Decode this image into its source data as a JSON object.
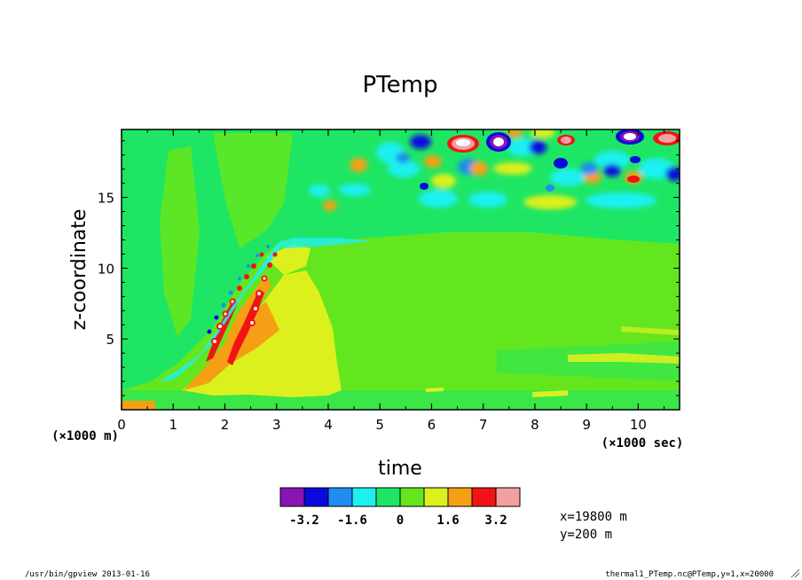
{
  "chart_data": {
    "type": "heatmap",
    "title": "PTemp",
    "xlabel": "time",
    "ylabel": "z-coordinate",
    "x_unit": "(×1000 sec)",
    "y_unit": "(×1000 m)",
    "xlim": [
      0,
      10.8
    ],
    "ylim": [
      0,
      19.8
    ],
    "x_ticks": [
      "0",
      "1",
      "2",
      "3",
      "4",
      "5",
      "6",
      "7",
      "8",
      "9",
      "10"
    ],
    "y_ticks": [
      "5",
      "10",
      "15"
    ],
    "colorbar": {
      "levels": [
        -4.0,
        -3.2,
        -2.4,
        -1.6,
        -0.8,
        0,
        0.8,
        1.6,
        2.4,
        3.2,
        4.0
      ],
      "tick_labels": [
        "-3.2",
        "-1.6",
        "0",
        "1.6",
        "3.2"
      ],
      "colors": [
        "#8a14b4",
        "#0a0adc",
        "#1e8cf0",
        "#1ef0f0",
        "#1ee664",
        "#64e61e",
        "#dcf01e",
        "#f5a014",
        "#f01414",
        "#f5a0a0"
      ]
    },
    "legend": "none"
  },
  "annotations": {
    "slice_x": "x=19800 m",
    "slice_y": "y=200 m"
  },
  "footer": {
    "left": "/usr/bin/gpview  2013-01-16",
    "right": "thermal1_PTemp.nc@PTemp,y=1,x=20000"
  }
}
